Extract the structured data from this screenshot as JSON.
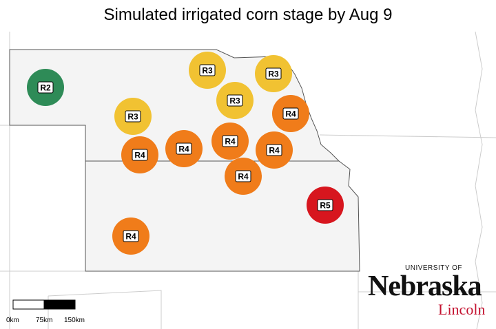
{
  "title": "Simulated irrigated corn stage by Aug 9",
  "colors": {
    "R2": "#2e8b57",
    "R3": "#f1c232",
    "R4": "#f07c1a",
    "R5": "#d7161e",
    "state_fill": "#f4f4f4",
    "state_border": "#555555",
    "neighbor_border": "#cccccc"
  },
  "sites": [
    {
      "stage": "R2"
    },
    {
      "stage": "R3"
    },
    {
      "stage": "R3"
    },
    {
      "stage": "R3"
    },
    {
      "stage": "R3"
    },
    {
      "stage": "R4"
    },
    {
      "stage": "R4"
    },
    {
      "stage": "R4"
    },
    {
      "stage": "R4"
    },
    {
      "stage": "R4"
    },
    {
      "stage": "R4"
    },
    {
      "stage": "R4"
    },
    {
      "stage": "R5"
    }
  ],
  "scale_bar": {
    "labels": [
      "0km",
      "75km",
      "150km"
    ]
  },
  "logo": {
    "line1": "UNIVERSITY OF",
    "line2": "Nebraska",
    "line3": "Lincoln"
  }
}
